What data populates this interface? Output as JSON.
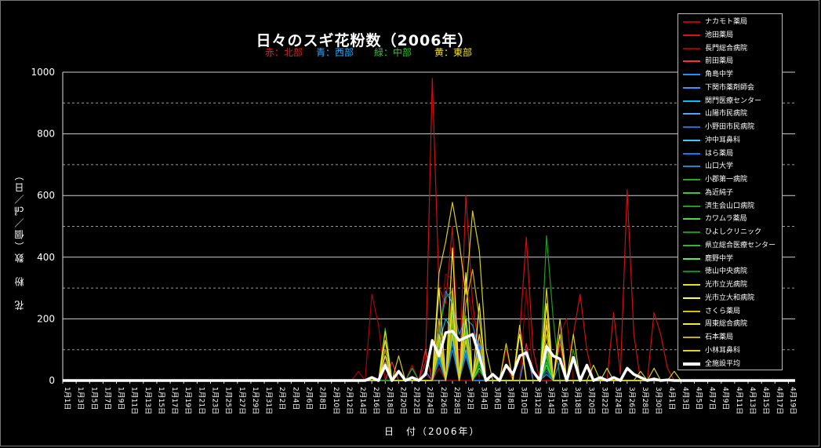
{
  "chart_data": {
    "type": "line",
    "title": "日々のスギ花粉数（2006年）",
    "region_labels": [
      {
        "text": "赤：北部",
        "color": "#e02020"
      },
      {
        "text": "青：西部",
        "color": "#22aaff"
      },
      {
        "text": "緑：中部",
        "color": "#22cc22"
      },
      {
        "text": "黄：東部",
        "color": "#f0e020"
      }
    ],
    "ylabel": "花　粉　数（個／㎠／日）",
    "xlabel": "日　付（2006年）",
    "ylim": [
      0,
      1000
    ],
    "yticks": [
      "0",
      "200",
      "400",
      "600",
      "800",
      "1000"
    ],
    "grid": "horizontal",
    "legend_position": "right",
    "x_tick_labels": [
      "1月1日",
      "1月3日",
      "1月5日",
      "1月7日",
      "1月9日",
      "1月11日",
      "1月13日",
      "1月15日",
      "1月17日",
      "1月19日",
      "1月21日",
      "1月23日",
      "1月25日",
      "1月27日",
      "1月29日",
      "1月31日",
      "2月2日",
      "2月4日",
      "2月6日",
      "2月8日",
      "2月10日",
      "2月12日",
      "2月14日",
      "2月16日",
      "2月18日",
      "2月20日",
      "2月22日",
      "2月24日",
      "2月26日",
      "2月28日",
      "3月2日",
      "3月4日",
      "3月6日",
      "3月8日",
      "3月10日",
      "3月12日",
      "3月14日",
      "3月16日",
      "3月18日",
      "3月20日",
      "3月22日",
      "3月24日",
      "3月26日",
      "3月28日",
      "3月30日",
      "4月1日",
      "4月3日",
      "4月5日",
      "4月7日",
      "4月9日",
      "4月11日",
      "4月13日",
      "4月15日",
      "4月17日",
      "4月19日"
    ],
    "day_count": 110,
    "series": [
      {
        "name": "ナカモト薬局",
        "color": "#c00000",
        "points": [
          [
            44,
            30
          ],
          [
            46,
            280
          ],
          [
            47,
            180
          ],
          [
            52,
            50
          ],
          [
            54,
            20
          ],
          [
            56,
            40
          ]
        ]
      },
      {
        "name": "池田薬局",
        "color": "#e01010",
        "points": [
          [
            54,
            60
          ],
          [
            55,
            980
          ],
          [
            56,
            300
          ],
          [
            57,
            250
          ],
          [
            58,
            500
          ],
          [
            60,
            600
          ],
          [
            61,
            250
          ],
          [
            62,
            100
          ],
          [
            66,
            50
          ],
          [
            68,
            150
          ],
          [
            69,
            465
          ],
          [
            70,
            100
          ],
          [
            76,
            150
          ],
          [
            77,
            280
          ],
          [
            78,
            100
          ],
          [
            82,
            220
          ],
          [
            83,
            20
          ],
          [
            84,
            619
          ],
          [
            85,
            150
          ],
          [
            88,
            220
          ],
          [
            89,
            150
          ],
          [
            90,
            40
          ]
        ]
      },
      {
        "name": "長門総合病院",
        "color": "#a00000",
        "points": [
          [
            56,
            140
          ],
          [
            57,
            345
          ],
          [
            58,
            330
          ],
          [
            60,
            330
          ],
          [
            61,
            200
          ],
          [
            66,
            100
          ],
          [
            69,
            300
          ],
          [
            72,
            200
          ],
          [
            74,
            150
          ],
          [
            75,
            200
          ]
        ]
      },
      {
        "name": "前田薬局",
        "color": "#ff3030",
        "points": [
          [
            49,
            60
          ],
          [
            54,
            100
          ],
          [
            56,
            200
          ],
          [
            58,
            250
          ],
          [
            60,
            200
          ],
          [
            62,
            100
          ],
          [
            69,
            120
          ],
          [
            72,
            80
          ],
          [
            74,
            120
          ]
        ]
      },
      {
        "name": "角島中学",
        "color": "#1e90ff",
        "points": [
          [
            52,
            40
          ],
          [
            54,
            30
          ],
          [
            56,
            150
          ],
          [
            57,
            290
          ],
          [
            58,
            250
          ],
          [
            59,
            150
          ],
          [
            60,
            200
          ],
          [
            61,
            180
          ],
          [
            62,
            100
          ],
          [
            69,
            100
          ],
          [
            72,
            100
          ],
          [
            74,
            60
          ]
        ]
      },
      {
        "name": "下関市薬剤師会",
        "color": "#3399ff",
        "points": [
          [
            48,
            80
          ],
          [
            56,
            150
          ],
          [
            58,
            200
          ],
          [
            60,
            180
          ],
          [
            62,
            120
          ],
          [
            72,
            60
          ]
        ]
      },
      {
        "name": "関門医療センター",
        "color": "#00bfff",
        "points": [
          [
            56,
            120
          ],
          [
            57,
            200
          ],
          [
            58,
            160
          ],
          [
            59,
            30
          ],
          [
            60,
            200
          ],
          [
            62,
            90
          ],
          [
            72,
            40
          ]
        ]
      },
      {
        "name": "山陽市民病院",
        "color": "#4fa3ff",
        "points": [
          [
            56,
            100
          ],
          [
            58,
            180
          ],
          [
            60,
            150
          ],
          [
            62,
            60
          ],
          [
            72,
            60
          ]
        ]
      },
      {
        "name": "小野田市民病院",
        "color": "#1c6fd0",
        "points": [
          [
            56,
            90
          ],
          [
            58,
            160
          ],
          [
            60,
            120
          ],
          [
            72,
            30
          ]
        ]
      },
      {
        "name": "沖中耳鼻科",
        "color": "#33ccff",
        "points": [
          [
            56,
            80
          ],
          [
            58,
            140
          ],
          [
            60,
            100
          ],
          [
            72,
            20
          ]
        ]
      },
      {
        "name": "はら薬局",
        "color": "#0080ff",
        "points": [
          [
            56,
            70
          ],
          [
            58,
            120
          ],
          [
            60,
            90
          ],
          [
            72,
            20
          ]
        ]
      },
      {
        "name": "山口大学",
        "color": "#2288cc",
        "points": [
          [
            56,
            60
          ],
          [
            58,
            100
          ],
          [
            60,
            80
          ],
          [
            72,
            20
          ]
        ]
      },
      {
        "name": "小郡第一病院",
        "color": "#22aa22",
        "points": [
          [
            48,
            170
          ],
          [
            52,
            40
          ],
          [
            56,
            160
          ],
          [
            57,
            270
          ],
          [
            58,
            290
          ],
          [
            60,
            210
          ],
          [
            62,
            100
          ],
          [
            72,
            470
          ],
          [
            73,
            200
          ],
          [
            76,
            100
          ]
        ]
      },
      {
        "name": "為近純子",
        "color": "#33cc33",
        "points": [
          [
            56,
            150
          ],
          [
            58,
            270
          ],
          [
            60,
            200
          ],
          [
            62,
            90
          ],
          [
            72,
            100
          ]
        ]
      },
      {
        "name": "済生会山口病院",
        "color": "#1f9f1f",
        "points": [
          [
            56,
            140
          ],
          [
            58,
            240
          ],
          [
            60,
            180
          ],
          [
            62,
            80
          ],
          [
            72,
            90
          ]
        ]
      },
      {
        "name": "カワムラ薬局",
        "color": "#44dd44",
        "points": [
          [
            56,
            130
          ],
          [
            58,
            220
          ],
          [
            60,
            160
          ],
          [
            62,
            70
          ],
          [
            72,
            80
          ]
        ]
      },
      {
        "name": "ひよしクリニック",
        "color": "#119911",
        "points": [
          [
            56,
            120
          ],
          [
            58,
            200
          ],
          [
            60,
            150
          ],
          [
            62,
            60
          ],
          [
            72,
            70
          ]
        ]
      },
      {
        "name": "県立総合医療センター",
        "color": "#2eb82e",
        "points": [
          [
            56,
            110
          ],
          [
            58,
            180
          ],
          [
            60,
            140
          ],
          [
            62,
            50
          ],
          [
            72,
            60
          ]
        ]
      },
      {
        "name": "鹿野中学",
        "color": "#55ee55",
        "points": [
          [
            56,
            100
          ],
          [
            58,
            160
          ],
          [
            60,
            130
          ],
          [
            62,
            40
          ],
          [
            72,
            50
          ]
        ]
      },
      {
        "name": "徳山中央病院",
        "color": "#0d8f0d",
        "points": [
          [
            56,
            90
          ],
          [
            58,
            150
          ],
          [
            60,
            120
          ],
          [
            62,
            30
          ],
          [
            72,
            40
          ]
        ]
      },
      {
        "name": "光市立光病院",
        "color": "#e8e020",
        "points": [
          [
            48,
            160
          ],
          [
            50,
            80
          ],
          [
            56,
            350
          ],
          [
            57,
            450
          ],
          [
            58,
            578
          ],
          [
            59,
            450
          ],
          [
            60,
            280
          ],
          [
            61,
            550
          ],
          [
            62,
            420
          ],
          [
            63,
            100
          ],
          [
            66,
            120
          ],
          [
            68,
            180
          ],
          [
            72,
            300
          ],
          [
            74,
            200
          ],
          [
            76,
            150
          ],
          [
            79,
            50
          ],
          [
            81,
            40
          ],
          [
            86,
            30
          ],
          [
            88,
            40
          ],
          [
            91,
            30
          ]
        ]
      },
      {
        "name": "光市立大和病院",
        "color": "#ffff40",
        "points": [
          [
            48,
            130
          ],
          [
            56,
            300
          ],
          [
            58,
            430
          ],
          [
            60,
            350
          ],
          [
            62,
            250
          ],
          [
            68,
            150
          ],
          [
            72,
            250
          ],
          [
            74,
            150
          ]
        ]
      },
      {
        "name": "さくら薬局",
        "color": "#d4c010",
        "points": [
          [
            48,
            100
          ],
          [
            56,
            200
          ],
          [
            58,
            300
          ],
          [
            60,
            250
          ],
          [
            61,
            360
          ],
          [
            62,
            200
          ],
          [
            72,
            200
          ]
        ]
      },
      {
        "name": "周東総合病院",
        "color": "#f5e642",
        "points": [
          [
            48,
            80
          ],
          [
            56,
            150
          ],
          [
            58,
            250
          ],
          [
            60,
            200
          ],
          [
            62,
            150
          ],
          [
            72,
            180
          ]
        ]
      },
      {
        "name": "石本薬局",
        "color": "#c8b400",
        "points": [
          [
            48,
            60
          ],
          [
            56,
            120
          ],
          [
            58,
            200
          ],
          [
            60,
            150
          ],
          [
            62,
            100
          ],
          [
            72,
            150
          ]
        ]
      },
      {
        "name": "小林耳鼻科",
        "color": "#e0d030",
        "points": [
          [
            48,
            40
          ],
          [
            56,
            100
          ],
          [
            58,
            150
          ],
          [
            60,
            130
          ],
          [
            62,
            80
          ],
          [
            72,
            120
          ]
        ]
      },
      {
        "name": "全施設平均",
        "color": "#ffffff",
        "points": [
          [
            46,
            10
          ],
          [
            48,
            50
          ],
          [
            50,
            30
          ],
          [
            52,
            10
          ],
          [
            54,
            20
          ],
          [
            55,
            130
          ],
          [
            56,
            80
          ],
          [
            57,
            155
          ],
          [
            58,
            160
          ],
          [
            59,
            130
          ],
          [
            60,
            140
          ],
          [
            61,
            150
          ],
          [
            62,
            80
          ],
          [
            64,
            20
          ],
          [
            66,
            50
          ],
          [
            67,
            20
          ],
          [
            68,
            80
          ],
          [
            69,
            90
          ],
          [
            70,
            30
          ],
          [
            72,
            110
          ],
          [
            73,
            80
          ],
          [
            74,
            70
          ],
          [
            76,
            75
          ],
          [
            78,
            50
          ],
          [
            80,
            10
          ],
          [
            82,
            10
          ],
          [
            84,
            40
          ],
          [
            85,
            20
          ],
          [
            86,
            10
          ],
          [
            88,
            5
          ],
          [
            90,
            2
          ]
        ]
      }
    ]
  }
}
